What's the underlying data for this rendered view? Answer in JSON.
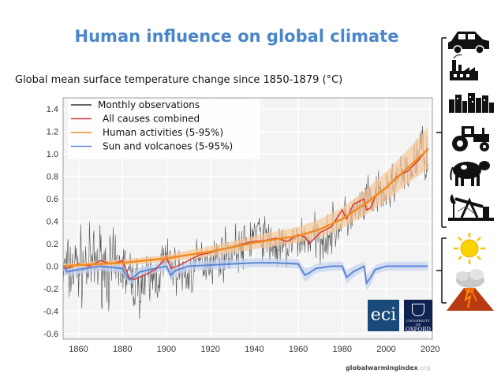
{
  "title": "Human influence on global climate",
  "subtitle": "Global mean surface temperature change since 1850-1879 (°C)",
  "watermark": {
    "bold": "globalwarmingindex",
    "light": ".org"
  },
  "logos": {
    "eci": "eci",
    "oxford": "OXFORD",
    "oxford_small": "UNIVERSITY OF"
  },
  "colors": {
    "observations": "#333333",
    "all_causes": "#d33a3a",
    "human": "#f08c20",
    "human_band": "#f7c79a",
    "natural": "#5b86d6",
    "natural_band": "#c5d3f0",
    "title": "#4a86c8"
  },
  "icons": {
    "human_drivers": [
      "car-icon",
      "factory-icon",
      "city-icon",
      "tractor-icon",
      "cow-icon",
      "oil-pump-icon"
    ],
    "natural_drivers": [
      "sun-icon",
      "volcano-icon"
    ]
  },
  "chart_data": {
    "type": "line",
    "title": "",
    "xlabel": "",
    "ylabel": "",
    "xlim": [
      1853,
      2021
    ],
    "ylim": [
      -0.65,
      1.5
    ],
    "xticks": [
      1860,
      1880,
      1900,
      1920,
      1940,
      1960,
      1980,
      2000,
      2020
    ],
    "yticks": [
      -0.6,
      -0.4,
      -0.2,
      0.0,
      0.2,
      0.4,
      0.6,
      0.8,
      1.0,
      1.2,
      1.4
    ],
    "xtick_labels": [
      "1860",
      "1880",
      "1900",
      "1920",
      "1940",
      "1960",
      "1980",
      "2000",
      "2020"
    ],
    "ytick_labels": [
      "-0.6",
      "-0.4",
      "-0.2",
      "0.0",
      "0.2",
      "0.4",
      "0.6",
      "0.8",
      "1.0",
      "1.2",
      "1.4"
    ],
    "grid": true,
    "legend_position": "top-left",
    "legend": [
      {
        "label": "Monthly observations",
        "color": "#333333"
      },
      {
        "label": "All causes combined",
        "color": "#d33a3a"
      },
      {
        "label": "Human activities (5-95%)",
        "color": "#f08c20"
      },
      {
        "label": "Sun and volcanoes (5-95%)",
        "color": "#5b86d6"
      }
    ],
    "series": [
      {
        "name": "Monthly observations",
        "style": "noisy",
        "x": [
          1850,
          1855,
          1860,
          1865,
          1870,
          1875,
          1880,
          1883,
          1885,
          1890,
          1895,
          1900,
          1905,
          1910,
          1915,
          1920,
          1925,
          1930,
          1935,
          1940,
          1945,
          1950,
          1955,
          1960,
          1965,
          1970,
          1975,
          1980,
          1985,
          1990,
          1995,
          2000,
          2005,
          2010,
          2015,
          2016,
          2018,
          2019
        ],
        "y": [
          -0.05,
          -0.05,
          0.0,
          0.0,
          0.05,
          -0.05,
          0.0,
          -0.1,
          -0.15,
          -0.15,
          -0.1,
          0.05,
          -0.05,
          -0.1,
          0.05,
          0.05,
          0.1,
          0.15,
          0.15,
          0.3,
          0.25,
          0.15,
          0.15,
          0.25,
          0.25,
          0.25,
          0.3,
          0.4,
          0.45,
          0.55,
          0.6,
          0.65,
          0.8,
          0.8,
          1.0,
          1.1,
          0.95,
          1.0
        ]
      },
      {
        "name": "All causes combined",
        "x": [
          1850,
          1855,
          1860,
          1865,
          1870,
          1875,
          1880,
          1883,
          1885,
          1890,
          1895,
          1900,
          1902,
          1905,
          1910,
          1915,
          1920,
          1925,
          1930,
          1935,
          1940,
          1945,
          1950,
          1955,
          1960,
          1963,
          1965,
          1970,
          1975,
          1980,
          1982,
          1985,
          1990,
          1991,
          1993,
          1995,
          2000,
          2005,
          2010,
          2015,
          2019
        ],
        "y": [
          0.0,
          -0.02,
          0.02,
          0.0,
          0.05,
          0.02,
          0.05,
          -0.1,
          -0.12,
          -0.08,
          -0.03,
          0.08,
          -0.02,
          0.0,
          0.05,
          0.1,
          0.12,
          0.15,
          0.17,
          0.2,
          0.22,
          0.23,
          0.25,
          0.22,
          0.28,
          0.26,
          0.2,
          0.3,
          0.35,
          0.5,
          0.42,
          0.55,
          0.6,
          0.5,
          0.52,
          0.62,
          0.7,
          0.8,
          0.85,
          0.95,
          1.05
        ]
      },
      {
        "name": "Human activities (5-95%)",
        "x": [
          1850,
          1860,
          1870,
          1880,
          1890,
          1900,
          1910,
          1920,
          1930,
          1940,
          1950,
          1960,
          1970,
          1980,
          1990,
          2000,
          2010,
          2019
        ],
        "y": [
          0.0,
          0.01,
          0.02,
          0.03,
          0.05,
          0.07,
          0.1,
          0.13,
          0.17,
          0.21,
          0.24,
          0.27,
          0.33,
          0.42,
          0.55,
          0.7,
          0.88,
          1.04
        ],
        "lower": [
          -0.02,
          -0.01,
          0.0,
          0.01,
          0.02,
          0.04,
          0.06,
          0.09,
          0.12,
          0.15,
          0.18,
          0.21,
          0.26,
          0.34,
          0.45,
          0.58,
          0.74,
          0.87
        ],
        "upper": [
          0.02,
          0.03,
          0.05,
          0.06,
          0.08,
          0.1,
          0.14,
          0.18,
          0.22,
          0.27,
          0.31,
          0.35,
          0.42,
          0.52,
          0.67,
          0.84,
          1.04,
          1.24
        ]
      },
      {
        "name": "Sun and volcanoes (5-95%)",
        "x": [
          1850,
          1855,
          1860,
          1870,
          1880,
          1883,
          1885,
          1888,
          1895,
          1900,
          1902,
          1904,
          1910,
          1920,
          1930,
          1940,
          1950,
          1960,
          1963,
          1965,
          1968,
          1975,
          1980,
          1982,
          1985,
          1990,
          1991,
          1993,
          1995,
          2000,
          2010,
          2019
        ],
        "y": [
          0.0,
          -0.05,
          -0.03,
          0.0,
          -0.02,
          -0.12,
          -0.1,
          -0.05,
          -0.02,
          0.0,
          -0.08,
          -0.04,
          0.0,
          0.01,
          0.02,
          0.03,
          0.03,
          0.02,
          -0.08,
          -0.06,
          -0.02,
          0.0,
          0.0,
          -0.1,
          -0.05,
          0.0,
          -0.15,
          -0.1,
          -0.03,
          0.0,
          0.0,
          0.0
        ],
        "lower": [
          -0.04,
          -0.09,
          -0.07,
          -0.04,
          -0.06,
          -0.17,
          -0.15,
          -0.09,
          -0.06,
          -0.04,
          -0.13,
          -0.08,
          -0.04,
          -0.03,
          -0.02,
          -0.01,
          -0.01,
          -0.02,
          -0.14,
          -0.11,
          -0.06,
          -0.04,
          -0.04,
          -0.16,
          -0.1,
          -0.04,
          -0.22,
          -0.16,
          -0.07,
          -0.04,
          -0.04,
          -0.04
        ],
        "upper": [
          0.04,
          -0.01,
          0.01,
          0.04,
          0.02,
          -0.07,
          -0.05,
          -0.01,
          0.02,
          0.04,
          -0.03,
          0.0,
          0.04,
          0.05,
          0.06,
          0.07,
          0.07,
          0.06,
          -0.02,
          -0.01,
          0.02,
          0.04,
          0.04,
          -0.04,
          0.0,
          0.04,
          -0.08,
          -0.04,
          0.01,
          0.04,
          0.04,
          0.04
        ]
      }
    ]
  }
}
